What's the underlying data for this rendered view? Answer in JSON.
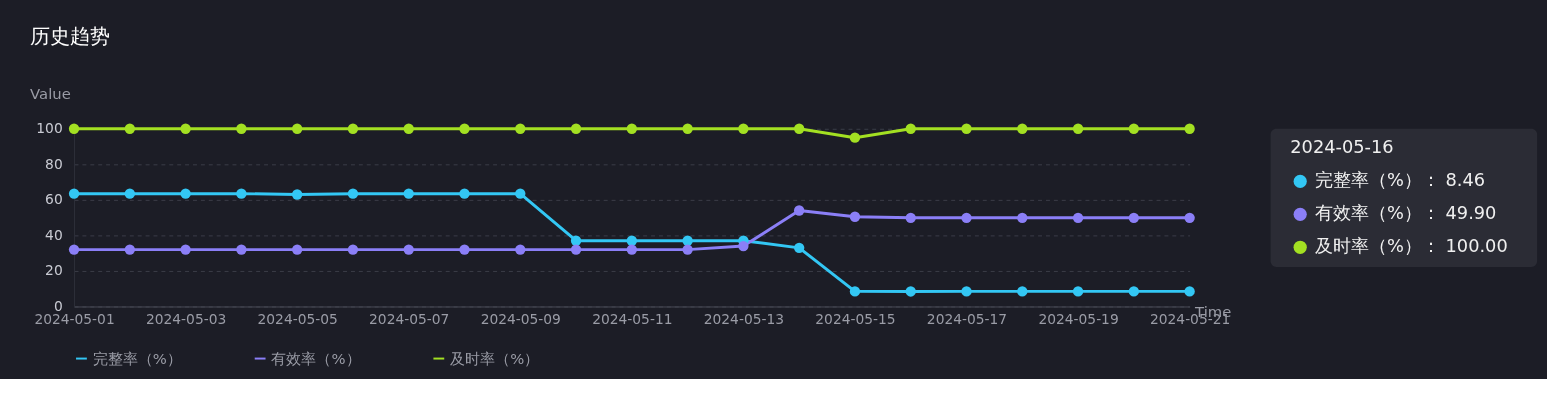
{
  "chart_data": {
    "type": "line",
    "title": "历史趋势",
    "xlabel": "Time",
    "ylabel": "Value",
    "x": [
      "2024-05-01",
      "2024-05-02",
      "2024-05-03",
      "2024-05-04",
      "2024-05-05",
      "2024-05-06",
      "2024-05-07",
      "2024-05-08",
      "2024-05-09",
      "2024-05-10",
      "2024-05-11",
      "2024-05-12",
      "2024-05-13",
      "2024-05-14",
      "2024-05-15",
      "2024-05-16",
      "2024-05-17",
      "2024-05-18",
      "2024-05-19",
      "2024-05-20",
      "2024-05-21"
    ],
    "series": [
      {
        "name": "完整率（%）",
        "color": "#33c7f4",
        "values": [
          63.5,
          63.5,
          63.5,
          63.5,
          63,
          63.5,
          63.5,
          63.5,
          63.5,
          37,
          37,
          37,
          37,
          33,
          8.5,
          8.46,
          8.5,
          8.5,
          8.5,
          8.5,
          8.5
        ]
      },
      {
        "name": "有效率（%）",
        "color": "#8b7ff7",
        "values": [
          32,
          32,
          32,
          32,
          32,
          32,
          32,
          32,
          32,
          32,
          32,
          32,
          34,
          54,
          50.5,
          49.9,
          49.9,
          49.9,
          49.9,
          49.9,
          49.9
        ]
      },
      {
        "name": "及时率（%）",
        "color": "#a3e022",
        "values": [
          100,
          100,
          100,
          100,
          100,
          100,
          100,
          100,
          100,
          100,
          100,
          100,
          100,
          100,
          95,
          100,
          100,
          100,
          100,
          100,
          100
        ]
      }
    ],
    "xlim": [
      "2024-05-01",
      "2024-05-21"
    ],
    "xticks": [
      "2024-05-01",
      "2024-05-03",
      "2024-05-05",
      "2024-05-07",
      "2024-05-09",
      "2024-05-11",
      "2024-05-13",
      "2024-05-15",
      "2024-05-17",
      "2024-05-19",
      "2024-05-21"
    ],
    "ylim": [
      0,
      100
    ],
    "yticks": [
      0,
      20,
      40,
      60,
      80,
      100
    ],
    "grid": "y",
    "legend": "bottom",
    "marker": "circle",
    "line_style": "solid",
    "annotations": [
      "2024-05-16",
      "完整率（%）： 8.46",
      "有效率（%）： 49.90",
      "及时率（%）： 100.00"
    ]
  }
}
